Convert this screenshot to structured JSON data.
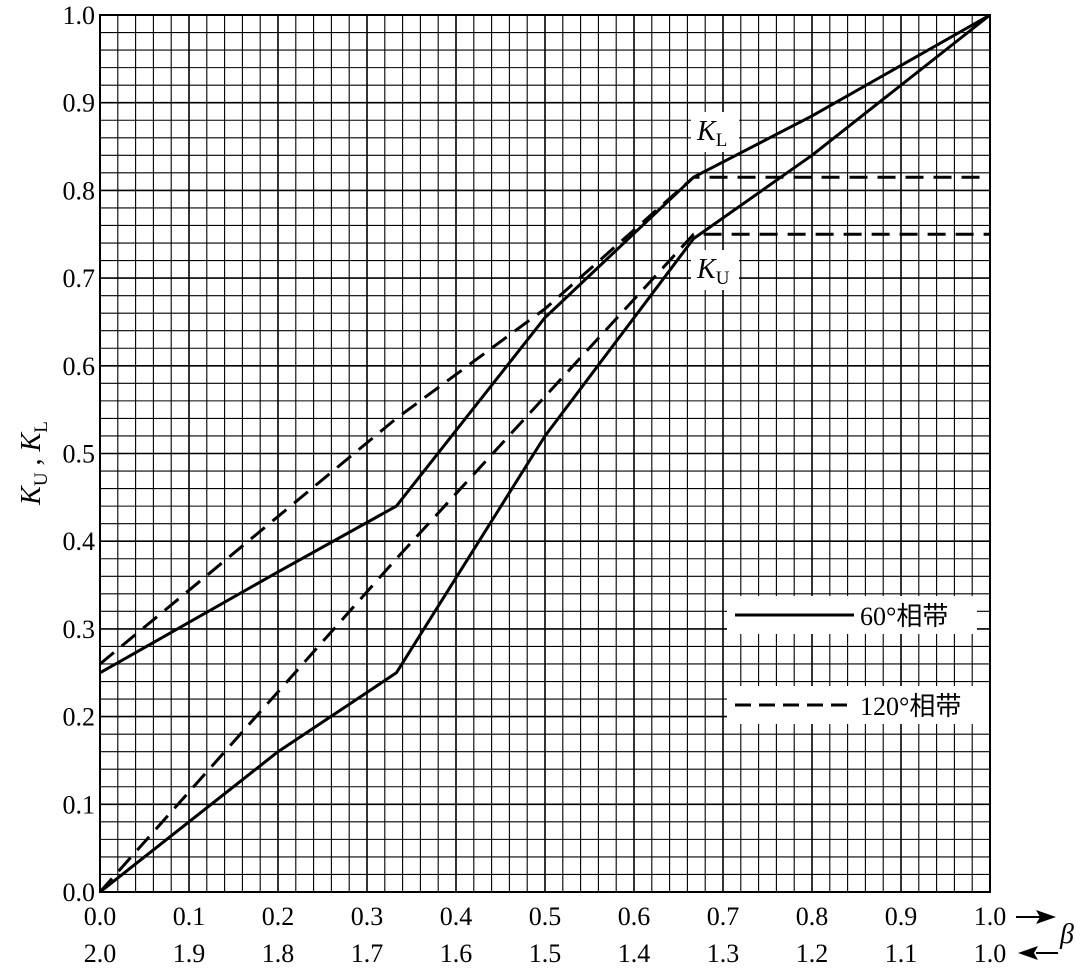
{
  "chart_data": {
    "type": "line",
    "title": "",
    "x": {
      "label": "β",
      "range": [
        0.0,
        1.0
      ],
      "ticks_top": [
        "0.0",
        "0.1",
        "0.2",
        "0.3",
        "0.4",
        "0.5",
        "0.6",
        "0.7",
        "0.8",
        "0.9",
        "1.0"
      ],
      "ticks_bottom": [
        "2.0",
        "1.9",
        "1.8",
        "1.7",
        "1.6",
        "1.5",
        "1.4",
        "1.3",
        "1.2",
        "1.1",
        "1.0"
      ]
    },
    "y": {
      "label_main": "K",
      "label_sub_u": "U",
      "label_sep": " , ",
      "label_sub_l": "L",
      "range": [
        0.0,
        1.0
      ],
      "ticks": [
        "0.0",
        "0.1",
        "0.2",
        "0.3",
        "0.4",
        "0.5",
        "0.6",
        "0.7",
        "0.8",
        "0.9",
        "1.0"
      ]
    },
    "grid": true,
    "legend_position": "right-middle",
    "legend": [
      {
        "label": "60°相带",
        "style": "solid"
      },
      {
        "label": "120°相带",
        "style": "dashed"
      }
    ],
    "annotations": [
      {
        "main": "K",
        "sub": "L",
        "near": "upper curves"
      },
      {
        "main": "K",
        "sub": "U",
        "near": "lower curves"
      }
    ],
    "series": [
      {
        "legend": "60°相带",
        "curve": "KL",
        "style": "solid",
        "points": [
          [
            0.0,
            0.25
          ],
          [
            0.2,
            0.365
          ],
          [
            0.333,
            0.44
          ],
          [
            0.5,
            0.655
          ],
          [
            0.667,
            0.815
          ],
          [
            0.8,
            0.885
          ],
          [
            1.0,
            1.0
          ]
        ]
      },
      {
        "legend": "60°相带",
        "curve": "KU",
        "style": "solid",
        "points": [
          [
            0.0,
            0.0
          ],
          [
            0.2,
            0.16
          ],
          [
            0.333,
            0.25
          ],
          [
            0.5,
            0.52
          ],
          [
            0.667,
            0.745
          ],
          [
            0.8,
            0.84
          ],
          [
            1.0,
            1.0
          ]
        ]
      },
      {
        "legend": "120°相带",
        "curve": "KL",
        "style": "dashed",
        "points": [
          [
            0.0,
            0.26
          ],
          [
            0.333,
            0.54
          ],
          [
            0.5,
            0.665
          ],
          [
            0.667,
            0.815
          ],
          [
            1.0,
            0.815
          ]
        ]
      },
      {
        "legend": "120°相带",
        "curve": "KU",
        "style": "dashed",
        "points": [
          [
            0.0,
            0.0
          ],
          [
            0.333,
            0.38
          ],
          [
            0.5,
            0.565
          ],
          [
            0.667,
            0.75
          ],
          [
            1.0,
            0.75
          ]
        ]
      }
    ]
  }
}
